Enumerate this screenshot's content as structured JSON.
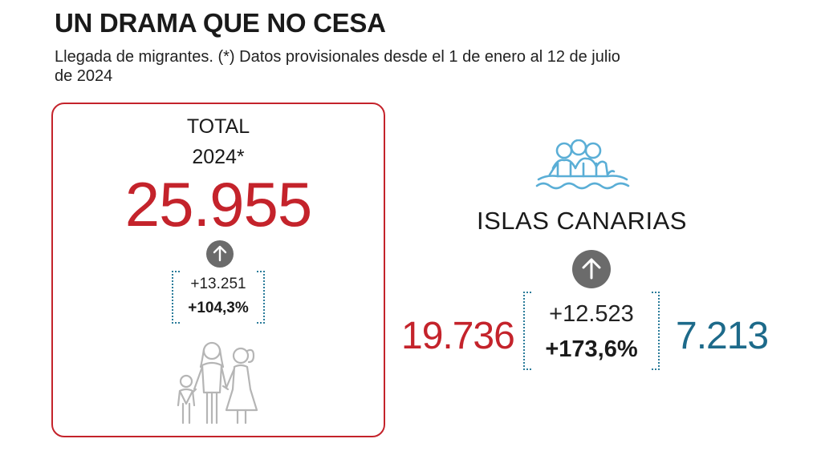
{
  "header": {
    "title": "UN DRAMA QUE NO CESA",
    "subtitle": "Llegada de migrantes. (*) Datos provisionales desde el 1 de enero al 12 de julio de 2024"
  },
  "total_card": {
    "label_line1": "TOTAL",
    "label_line2": "2024*",
    "value": "25.955",
    "change_abs": "+13.251",
    "change_pct": "+104,3%",
    "arrow_icon": "arrow-up-icon",
    "illustration": "family-icon"
  },
  "canarias": {
    "illustration": "people-on-boat-icon",
    "label": "ISLAS CANARIAS",
    "arrow_icon": "arrow-up-icon",
    "value_left": "19.736",
    "change_abs": "+12.523",
    "change_pct": "+173,6%",
    "value_right": "7.213"
  },
  "colors": {
    "accent_red": "#c4232b",
    "accent_blue": "#1d6a8a",
    "icon_blue": "#5aaed6",
    "icon_grey": "#b5b5b5",
    "arrow_grey": "#6b6b6b"
  }
}
